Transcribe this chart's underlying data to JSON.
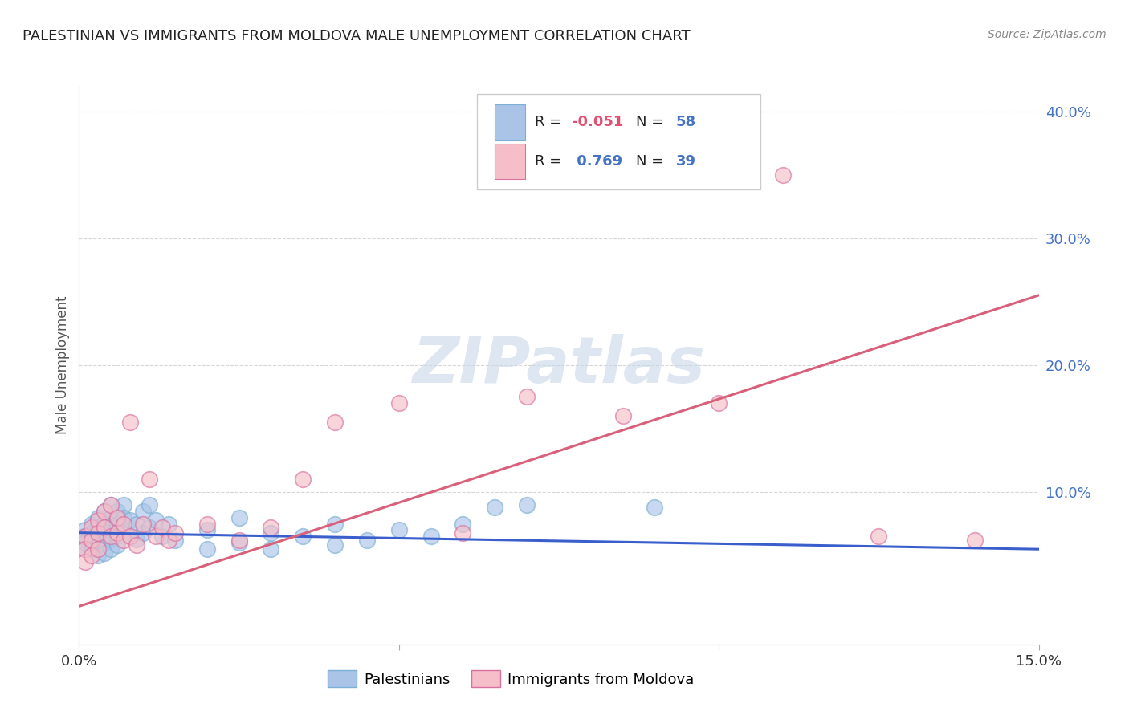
{
  "title": "PALESTINIAN VS IMMIGRANTS FROM MOLDOVA MALE UNEMPLOYMENT CORRELATION CHART",
  "source": "Source: ZipAtlas.com",
  "ylabel": "Male Unemployment",
  "xlabel": "",
  "xlim": [
    0.0,
    0.15
  ],
  "ylim": [
    -0.02,
    0.42
  ],
  "yticks": [
    0.1,
    0.2,
    0.3,
    0.4
  ],
  "ytick_labels": [
    "10.0%",
    "20.0%",
    "30.0%",
    "40.0%"
  ],
  "xticks": [
    0.0,
    0.05,
    0.1,
    0.15
  ],
  "xtick_labels": [
    "0.0%",
    "",
    "",
    "15.0%"
  ],
  "legend_label1": "Palestinians",
  "legend_label2": "Immigrants from Moldova",
  "blue_scatter_color": "#aac4e8",
  "pink_scatter_color": "#f5bec8",
  "blue_line_color": "#3a5fcd",
  "pink_line_color": "#d9607a",
  "watermark_color": "#c8d8e8",
  "r_neg_color": "#e05070",
  "r_pos_color": "#4472c4",
  "n_color": "#4472c4",
  "blue_line": {
    "x0": 0.0,
    "y0": 0.068,
    "x1": 0.15,
    "y1": 0.055
  },
  "pink_line": {
    "x0": 0.0,
    "y0": 0.01,
    "x1": 0.15,
    "y1": 0.255
  },
  "blue_scatter": [
    [
      0.001,
      0.07
    ],
    [
      0.001,
      0.065
    ],
    [
      0.001,
      0.06
    ],
    [
      0.001,
      0.055
    ],
    [
      0.002,
      0.075
    ],
    [
      0.002,
      0.068
    ],
    [
      0.002,
      0.062
    ],
    [
      0.002,
      0.055
    ],
    [
      0.003,
      0.08
    ],
    [
      0.003,
      0.072
    ],
    [
      0.003,
      0.065
    ],
    [
      0.003,
      0.058
    ],
    [
      0.003,
      0.05
    ],
    [
      0.004,
      0.085
    ],
    [
      0.004,
      0.075
    ],
    [
      0.004,
      0.068
    ],
    [
      0.004,
      0.06
    ],
    [
      0.004,
      0.052
    ],
    [
      0.005,
      0.09
    ],
    [
      0.005,
      0.08
    ],
    [
      0.005,
      0.072
    ],
    [
      0.005,
      0.063
    ],
    [
      0.005,
      0.055
    ],
    [
      0.006,
      0.085
    ],
    [
      0.006,
      0.075
    ],
    [
      0.006,
      0.065
    ],
    [
      0.006,
      0.058
    ],
    [
      0.007,
      0.09
    ],
    [
      0.007,
      0.08
    ],
    [
      0.007,
      0.07
    ],
    [
      0.008,
      0.078
    ],
    [
      0.008,
      0.065
    ],
    [
      0.009,
      0.075
    ],
    [
      0.009,
      0.063
    ],
    [
      0.01,
      0.085
    ],
    [
      0.01,
      0.068
    ],
    [
      0.011,
      0.09
    ],
    [
      0.011,
      0.072
    ],
    [
      0.012,
      0.078
    ],
    [
      0.013,
      0.065
    ],
    [
      0.014,
      0.075
    ],
    [
      0.015,
      0.062
    ],
    [
      0.02,
      0.07
    ],
    [
      0.02,
      0.055
    ],
    [
      0.025,
      0.08
    ],
    [
      0.025,
      0.06
    ],
    [
      0.03,
      0.068
    ],
    [
      0.03,
      0.055
    ],
    [
      0.035,
      0.065
    ],
    [
      0.04,
      0.075
    ],
    [
      0.04,
      0.058
    ],
    [
      0.045,
      0.062
    ],
    [
      0.05,
      0.07
    ],
    [
      0.055,
      0.065
    ],
    [
      0.06,
      0.075
    ],
    [
      0.065,
      0.088
    ],
    [
      0.07,
      0.09
    ],
    [
      0.09,
      0.088
    ]
  ],
  "pink_scatter": [
    [
      0.001,
      0.065
    ],
    [
      0.001,
      0.055
    ],
    [
      0.001,
      0.045
    ],
    [
      0.002,
      0.072
    ],
    [
      0.002,
      0.062
    ],
    [
      0.002,
      0.05
    ],
    [
      0.003,
      0.078
    ],
    [
      0.003,
      0.068
    ],
    [
      0.003,
      0.055
    ],
    [
      0.004,
      0.085
    ],
    [
      0.004,
      0.072
    ],
    [
      0.005,
      0.09
    ],
    [
      0.005,
      0.065
    ],
    [
      0.006,
      0.08
    ],
    [
      0.006,
      0.068
    ],
    [
      0.007,
      0.075
    ],
    [
      0.007,
      0.062
    ],
    [
      0.008,
      0.155
    ],
    [
      0.008,
      0.065
    ],
    [
      0.009,
      0.058
    ],
    [
      0.01,
      0.075
    ],
    [
      0.011,
      0.11
    ],
    [
      0.012,
      0.065
    ],
    [
      0.013,
      0.072
    ],
    [
      0.014,
      0.062
    ],
    [
      0.015,
      0.068
    ],
    [
      0.02,
      0.075
    ],
    [
      0.025,
      0.062
    ],
    [
      0.03,
      0.072
    ],
    [
      0.035,
      0.11
    ],
    [
      0.04,
      0.155
    ],
    [
      0.05,
      0.17
    ],
    [
      0.06,
      0.068
    ],
    [
      0.07,
      0.175
    ],
    [
      0.085,
      0.16
    ],
    [
      0.1,
      0.17
    ],
    [
      0.11,
      0.35
    ],
    [
      0.125,
      0.065
    ],
    [
      0.14,
      0.062
    ]
  ]
}
